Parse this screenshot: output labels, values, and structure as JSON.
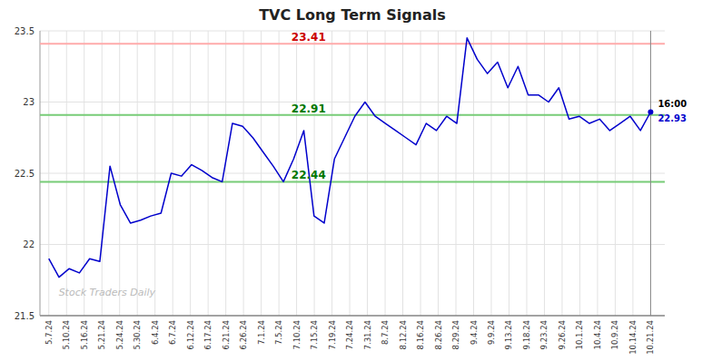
{
  "chart_data": {
    "type": "line",
    "title": "TVC Long Term Signals",
    "x": [
      0,
      0.576271,
      1.152542,
      1.728814,
      2.305085,
      2.881356,
      3.457627,
      4.033898,
      4.610169,
      5.186441,
      5.762712,
      6.338983,
      6.915254,
      7.491525,
      8.067797,
      8.644068,
      9.220339,
      9.79661,
      10.372881,
      10.949153,
      11.525424,
      12.101695,
      12.677966,
      13.254237,
      13.830508,
      14.40678,
      14.983051,
      15.559322,
      16.135593,
      16.711864,
      17.288136,
      17.864407,
      18.440678,
      19.016949,
      19.59322,
      20.169492,
      20.745763,
      21.322034,
      21.898305,
      22.474576,
      23.050847,
      23.627119,
      24.20339,
      24.779661,
      25.355932,
      25.932203,
      26.508475,
      27.084746,
      27.661017,
      28.237288,
      28.813559,
      29.389831,
      29.966102,
      30.542373,
      31.118644,
      31.694915,
      32.271186,
      32.847458,
      33.423729,
      34
    ],
    "values": [
      21.9,
      21.77,
      21.83,
      21.8,
      21.9,
      21.88,
      22.55,
      22.28,
      22.15,
      22.17,
      22.2,
      22.22,
      22.5,
      22.48,
      22.56,
      22.52,
      22.47,
      22.44,
      22.85,
      22.83,
      22.75,
      22.65,
      22.55,
      22.44,
      22.6,
      22.8,
      22.2,
      22.15,
      22.6,
      22.75,
      22.9,
      23.0,
      22.9,
      22.85,
      22.8,
      22.75,
      22.7,
      22.85,
      22.8,
      22.9,
      22.85,
      23.45,
      23.3,
      23.2,
      23.28,
      23.1,
      23.25,
      23.05,
      23.05,
      23.0,
      23.1,
      22.88,
      22.9,
      22.85,
      22.88,
      22.8,
      22.85,
      22.9,
      22.8,
      22.93
    ],
    "color": "#0000cc",
    "xlim": [
      -0.5,
      34.8
    ],
    "xticks": [
      {
        "value": 0,
        "label": "5.7.24"
      },
      {
        "value": 1,
        "label": "5.10.24"
      },
      {
        "value": 2,
        "label": "5.16.24"
      },
      {
        "value": 3,
        "label": "5.21.24"
      },
      {
        "value": 4,
        "label": "5.24.24"
      },
      {
        "value": 5,
        "label": "5.30.24"
      },
      {
        "value": 6,
        "label": "6.4.24"
      },
      {
        "value": 7,
        "label": "6.7.24"
      },
      {
        "value": 8,
        "label": "6.12.24"
      },
      {
        "value": 9,
        "label": "6.17.24"
      },
      {
        "value": 10,
        "label": "6.21.24"
      },
      {
        "value": 11,
        "label": "6.26.24"
      },
      {
        "value": 12,
        "label": "7.1.24"
      },
      {
        "value": 13,
        "label": "7.5.24"
      },
      {
        "value": 14,
        "label": "7.10.24"
      },
      {
        "value": 15,
        "label": "7.15.24"
      },
      {
        "value": 16,
        "label": "7.19.24"
      },
      {
        "value": 17,
        "label": "7.24.24"
      },
      {
        "value": 18,
        "label": "7.31.24"
      },
      {
        "value": 19,
        "label": "8.7.24"
      },
      {
        "value": 20,
        "label": "8.12.24"
      },
      {
        "value": 21,
        "label": "8.16.24"
      },
      {
        "value": 22,
        "label": "8.26.24"
      },
      {
        "value": 23,
        "label": "8.29.24"
      },
      {
        "value": 24,
        "label": "9.4.24"
      },
      {
        "value": 25,
        "label": "9.9.24"
      },
      {
        "value": 26,
        "label": "9.13.24"
      },
      {
        "value": 27,
        "label": "9.18.24"
      },
      {
        "value": 28,
        "label": "9.23.24"
      },
      {
        "value": 29,
        "label": "9.26.24"
      },
      {
        "value": 30,
        "label": "10.1.24"
      },
      {
        "value": 31,
        "label": "10.4.24"
      },
      {
        "value": 32,
        "label": "10.9.24"
      },
      {
        "value": 33,
        "label": "10.14.24"
      },
      {
        "value": 34,
        "label": "10.21.24"
      }
    ],
    "ylim": [
      21.5,
      23.5
    ],
    "yticks": [
      21.5,
      22,
      22.5,
      23,
      23.5
    ],
    "grid": true,
    "reference_lines": [
      {
        "value": 23.41,
        "label": "23.41",
        "color": "#ffaaaa",
        "label_color": "#cc0000"
      },
      {
        "value": 22.91,
        "label": "22.91",
        "color": "#77cc77",
        "label_color": "#007700"
      },
      {
        "value": 22.44,
        "label": "22.44",
        "color": "#77cc77",
        "label_color": "#007700"
      }
    ],
    "vertical_lines": [
      34
    ],
    "last_point": {
      "time": "16:00",
      "value": 22.93,
      "label": "22.93"
    },
    "watermark": "Stock Traders Daily",
    "watermark_color": "#bbbbbb"
  }
}
